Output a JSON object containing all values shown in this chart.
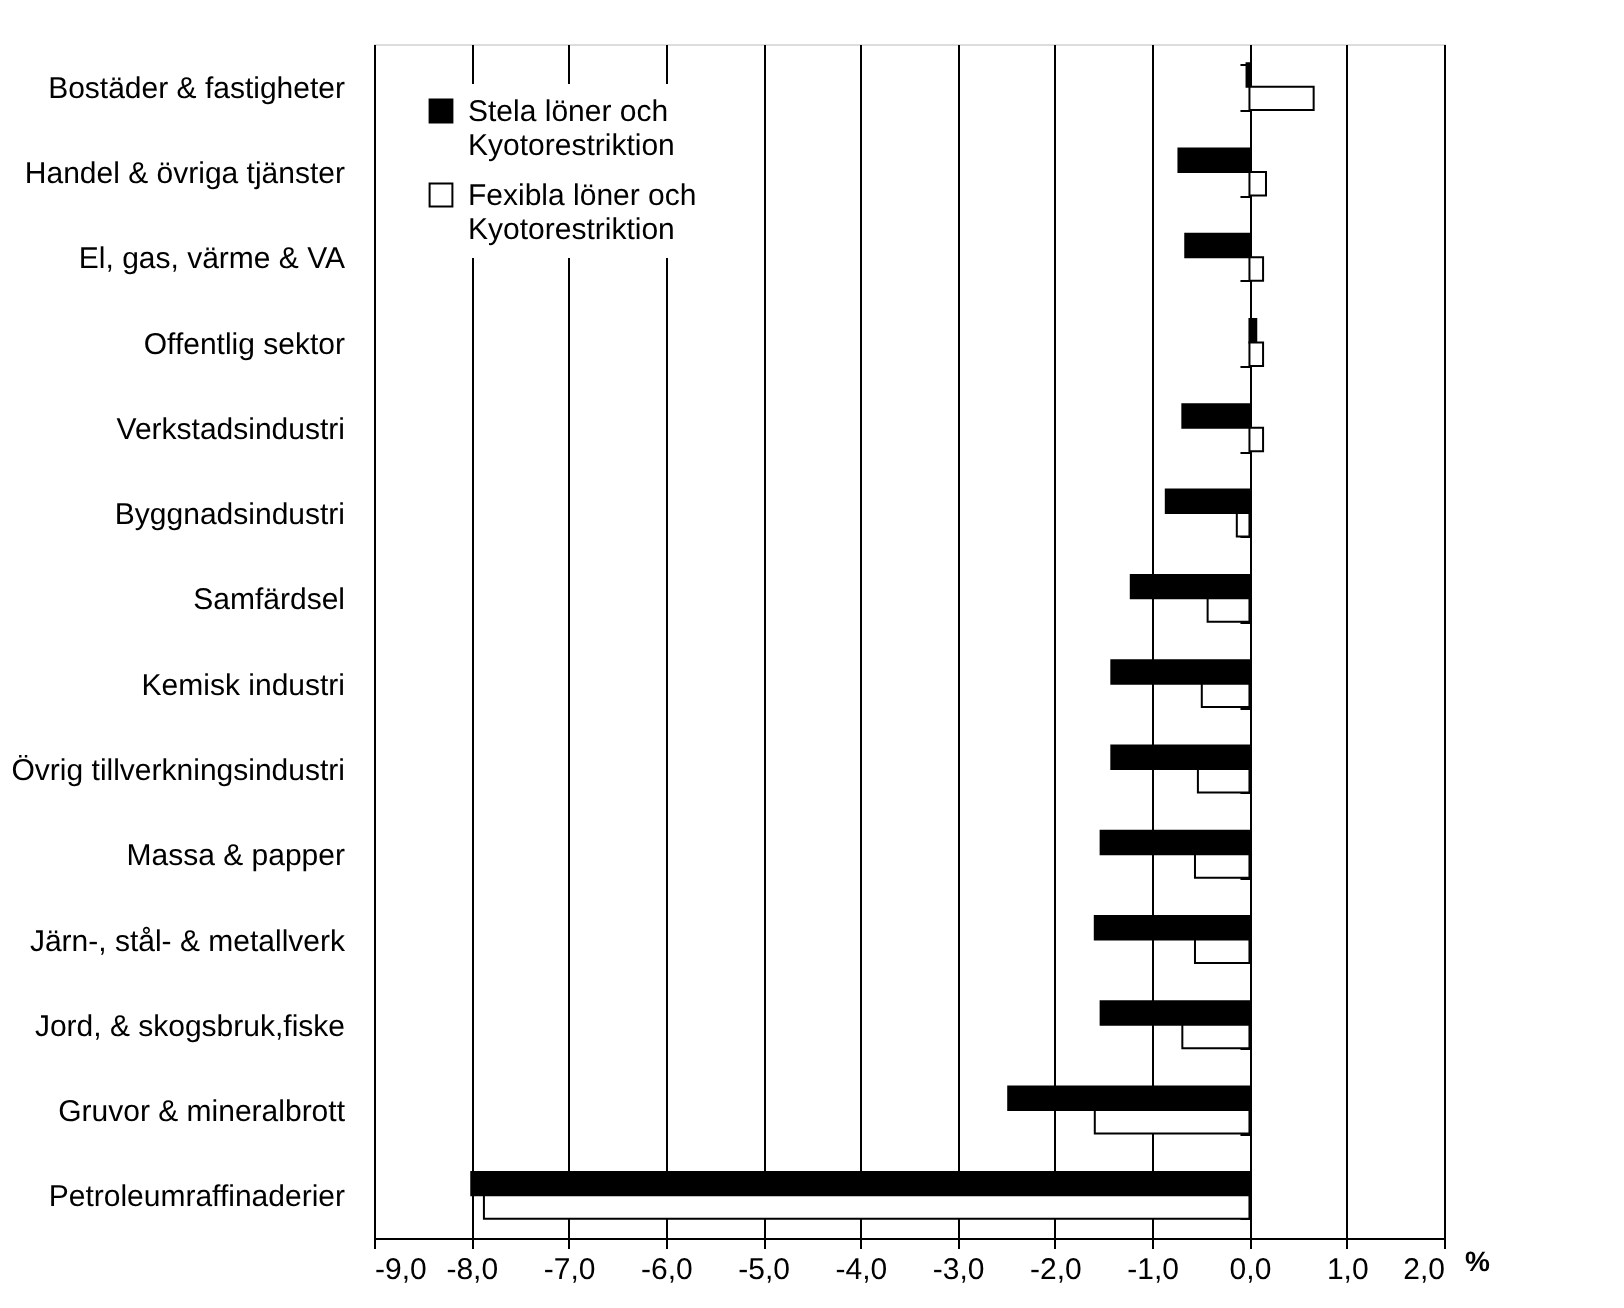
{
  "chart_data": {
    "type": "bar",
    "orientation": "horizontal",
    "xlabel": "%",
    "categories": [
      "Bostäder & fastigheter",
      "Handel & övriga tjänster",
      "El, gas, värme & VA",
      "Offentlig sektor",
      "Verkstadsindustri",
      "Byggnadsindustri",
      "Samfärdsel",
      "Kemisk industri",
      "Övrig tillverkningsindustri",
      "Massa & papper",
      "Järn-, stål- & metallverk",
      "Jord, & skogsbruk,fiske",
      "Gruvor & mineralbrott",
      "Petroleumraffinaderier"
    ],
    "series": [
      {
        "name": "Stela löner och Kyotorestriktion",
        "color": "#000000",
        "values": [
          -0.03,
          -0.73,
          -0.66,
          0.07,
          -0.69,
          -0.86,
          -1.22,
          -1.42,
          -1.42,
          -1.53,
          -1.59,
          -1.53,
          -2.48,
          -8.0
        ]
      },
      {
        "name": "Fexibla löner och Kyotorestriktion",
        "color": "#ffffff",
        "values": [
          0.66,
          0.17,
          0.14,
          0.14,
          0.14,
          -0.13,
          -0.43,
          -0.49,
          -0.53,
          -0.56,
          -0.56,
          -0.69,
          -1.59,
          -7.87
        ]
      }
    ],
    "xlim": [
      -9,
      2
    ],
    "xticks": [
      {
        "value": -9,
        "label": "-9,0"
      },
      {
        "value": -8,
        "label": "-8,0"
      },
      {
        "value": -7,
        "label": "-7,0"
      },
      {
        "value": -6,
        "label": "-6,0"
      },
      {
        "value": -5,
        "label": "-5,0"
      },
      {
        "value": -4,
        "label": "-4,0"
      },
      {
        "value": -3,
        "label": "-3,0"
      },
      {
        "value": -2,
        "label": "-2,0"
      },
      {
        "value": -1,
        "label": "-1,0"
      },
      {
        "value": 0,
        "label": "0,0"
      },
      {
        "value": 1,
        "label": "1,0"
      },
      {
        "value": 2,
        "label": "2,0"
      }
    ],
    "grid": "x",
    "legend": "top left"
  }
}
